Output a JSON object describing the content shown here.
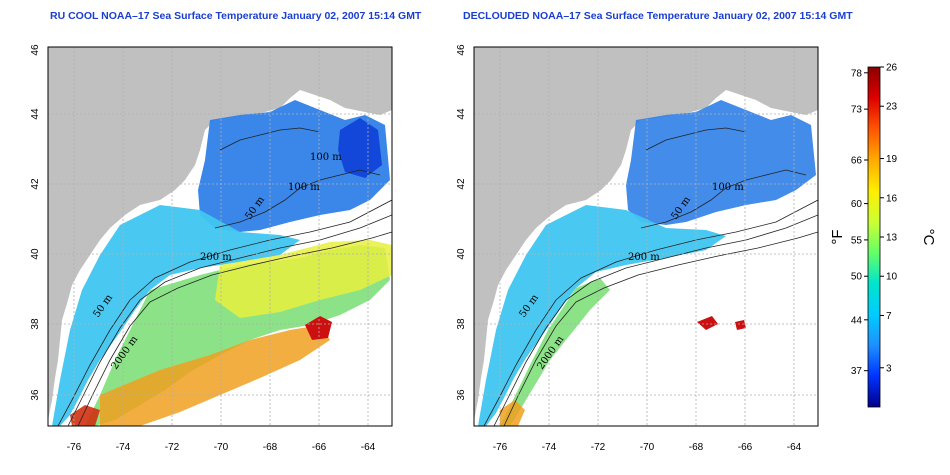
{
  "panels": [
    {
      "title": "RU COOL NOAA–17 Sea Surface Temperature January 02, 2007 15:14 GMT",
      "x_ticks": [
        "-76",
        "-74",
        "-72",
        "-70",
        "-68",
        "-66",
        "-64"
      ],
      "y_ticks": [
        "36",
        "38",
        "40",
        "42",
        "44",
        "46"
      ],
      "contour_labels": [
        "200 m",
        "100 m",
        "100 m",
        "50 m",
        "50 m",
        "2000 m"
      ]
    },
    {
      "title": "DECLOUDED NOAA–17 Sea Surface Temperature January 02, 2007 15:14 GMT",
      "x_ticks": [
        "-76",
        "-74",
        "-72",
        "-70",
        "-68",
        "-66",
        "-64"
      ],
      "y_ticks": [
        "36",
        "38",
        "40",
        "42",
        "44",
        "46"
      ],
      "contour_labels": [
        "200 m",
        "100 m",
        "50 m",
        "50 m",
        "2000 m"
      ]
    }
  ],
  "colorbar": {
    "fahrenheit_ticks": [
      "78",
      "73",
      "66",
      "60",
      "55",
      "50",
      "44",
      "37"
    ],
    "celsius_ticks": [
      "26",
      "23",
      "19",
      "16",
      "13",
      "10",
      "7",
      "3"
    ],
    "fahrenheit_unit": "°F",
    "celsius_unit": "°C",
    "range_celsius": [
      0,
      26
    ],
    "colors": [
      "#00008b",
      "#0033ff",
      "#1e90ff",
      "#00ccff",
      "#00e5cc",
      "#66ff66",
      "#ccff33",
      "#ffee00",
      "#ffaa00",
      "#ff5500",
      "#dd0000",
      "#8b0000"
    ]
  },
  "colors": {
    "land": "#c0c0c0",
    "title": "#1a3fd0",
    "grid": "#b0b0b0"
  }
}
